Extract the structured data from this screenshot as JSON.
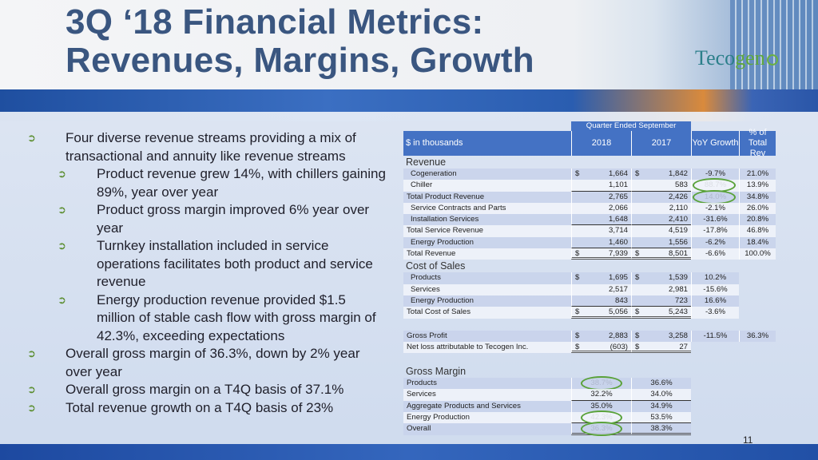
{
  "title": [
    "3Q ‘18 Financial Metrics:",
    "Revenues, Margins, Growth"
  ],
  "logo": {
    "text": "Tecogen"
  },
  "page_number": "11",
  "colors": {
    "header": "#4472c4",
    "bullet": "#5a8d2e",
    "highlight_ring": "#5aa23a"
  },
  "bullets": [
    {
      "level": 1,
      "lines": [
        "Four diverse revenue streams providing a mix of",
        "transactional and annuity like revenue streams"
      ]
    },
    {
      "level": 2,
      "lines": [
        "Product revenue grew 14%, with chillers gaining",
        "89%, year over year"
      ]
    },
    {
      "level": 2,
      "lines": [
        "Product gross margin improved 6% year over",
        "year"
      ]
    },
    {
      "level": 2,
      "lines": [
        "Turnkey installation included in service",
        "operations facilitates both product and service",
        "revenue"
      ]
    },
    {
      "level": 2,
      "lines": [
        "Energy production revenue provided $1.5",
        "million of stable cash flow with gross margin of",
        "42.3%, exceeding expectations"
      ]
    },
    {
      "level": 1,
      "lines": [
        "Overall gross margin of 36.3%, down by 2% year",
        "over year"
      ]
    },
    {
      "level": 1,
      "lines": [
        "Overall gross margin on a T4Q basis of 37.1%"
      ]
    },
    {
      "level": 1,
      "lines": [
        "Total revenue growth on a T4Q basis of 23%"
      ]
    }
  ],
  "table": {
    "period_header": "Quarter Ended September",
    "headers": [
      "$ in thousands",
      "2018",
      "2017",
      "YoY Growth",
      "% of Total Rev"
    ],
    "rows": [
      {
        "kind": "section",
        "label": "Revenue"
      },
      {
        "kind": "sub",
        "label": "Cogeneration",
        "d1": "$",
        "v1": "1,664",
        "d2": "$",
        "v2": "1,842",
        "yoy": "-9.7%",
        "pct": "21.0%"
      },
      {
        "kind": "sub",
        "label": "Chiller",
        "v1": "1,101",
        "v2": "583",
        "yoy": "88.7%",
        "pct": "13.9%",
        "line": "under",
        "ring": "yoy"
      },
      {
        "kind": "tot",
        "label": "Total Product Revenue",
        "v1": "2,765",
        "v2": "2,426",
        "yoy": "14.0%",
        "pct": "34.8%",
        "ring": "yoy"
      },
      {
        "kind": "sub",
        "label": "Service Contracts and Parts",
        "v1": "2,066",
        "v2": "2,110",
        "yoy": "-2.1%",
        "pct": "26.0%"
      },
      {
        "kind": "sub",
        "label": "Installation Services",
        "v1": "1,648",
        "v2": "2,410",
        "yoy": "-31.6%",
        "pct": "20.8%",
        "line": "under"
      },
      {
        "kind": "tot",
        "label": "Total Service Revenue",
        "v1": "3,714",
        "v2": "4,519",
        "yoy": "-17.8%",
        "pct": "46.8%"
      },
      {
        "kind": "sub",
        "label": "Energy Production",
        "v1": "1,460",
        "v2": "1,556",
        "yoy": "-6.2%",
        "pct": "18.4%",
        "line": "under"
      },
      {
        "kind": "tot",
        "label": "Total Revenue",
        "d1": "$",
        "v1": "7,939",
        "d2": "$",
        "v2": "8,501",
        "yoy": "-6.6%",
        "pct": "100.0%",
        "line": "dbl"
      },
      {
        "kind": "section",
        "label": "Cost of Sales"
      },
      {
        "kind": "sub",
        "label": "Products",
        "d1": "$",
        "v1": "1,695",
        "d2": "$",
        "v2": "1,539",
        "yoy": "10.2%"
      },
      {
        "kind": "sub",
        "label": "Services",
        "v1": "2,517",
        "v2": "2,981",
        "yoy": "-15.6%"
      },
      {
        "kind": "sub",
        "label": "Energy Production",
        "v1": "843",
        "v2": "723",
        "yoy": "16.6%",
        "line": "under"
      },
      {
        "kind": "tot",
        "label": "Total Cost of Sales",
        "d1": "$",
        "v1": "5,056",
        "d2": "$",
        "v2": "5,243",
        "yoy": "-3.6%",
        "line": "dbl"
      },
      {
        "kind": "spacer"
      },
      {
        "kind": "tot",
        "label": "Gross Profit",
        "d1": "$",
        "v1": "2,883",
        "d2": "$",
        "v2": "3,258",
        "yoy": "-11.5%",
        "pct": "36.3%"
      },
      {
        "kind": "tot",
        "label": "Net loss attributable to Tecogen Inc.",
        "d1": "$",
        "v1": "(603)",
        "d2": "$",
        "v2": "27",
        "line": "dbl"
      },
      {
        "kind": "spacer"
      },
      {
        "kind": "section",
        "label": "Gross Margin"
      },
      {
        "kind": "gm",
        "label": "Products",
        "v1": "38.7%",
        "v2": "36.6%",
        "ring": "v1"
      },
      {
        "kind": "gm",
        "label": "Services",
        "v1": "32.2%",
        "v2": "34.0%",
        "line": "under"
      },
      {
        "kind": "gm",
        "label": "Aggregate Products and Services",
        "v1": "35.0%",
        "v2": "34.9%"
      },
      {
        "kind": "gm",
        "label": "Energy Production",
        "v1": "42.3%",
        "v2": "53.5%",
        "line": "under",
        "ring": "v1"
      },
      {
        "kind": "gm",
        "label": "Overall",
        "v1": "36.3%",
        "v2": "38.3%",
        "line": "dbl",
        "ring": "v1"
      }
    ]
  }
}
